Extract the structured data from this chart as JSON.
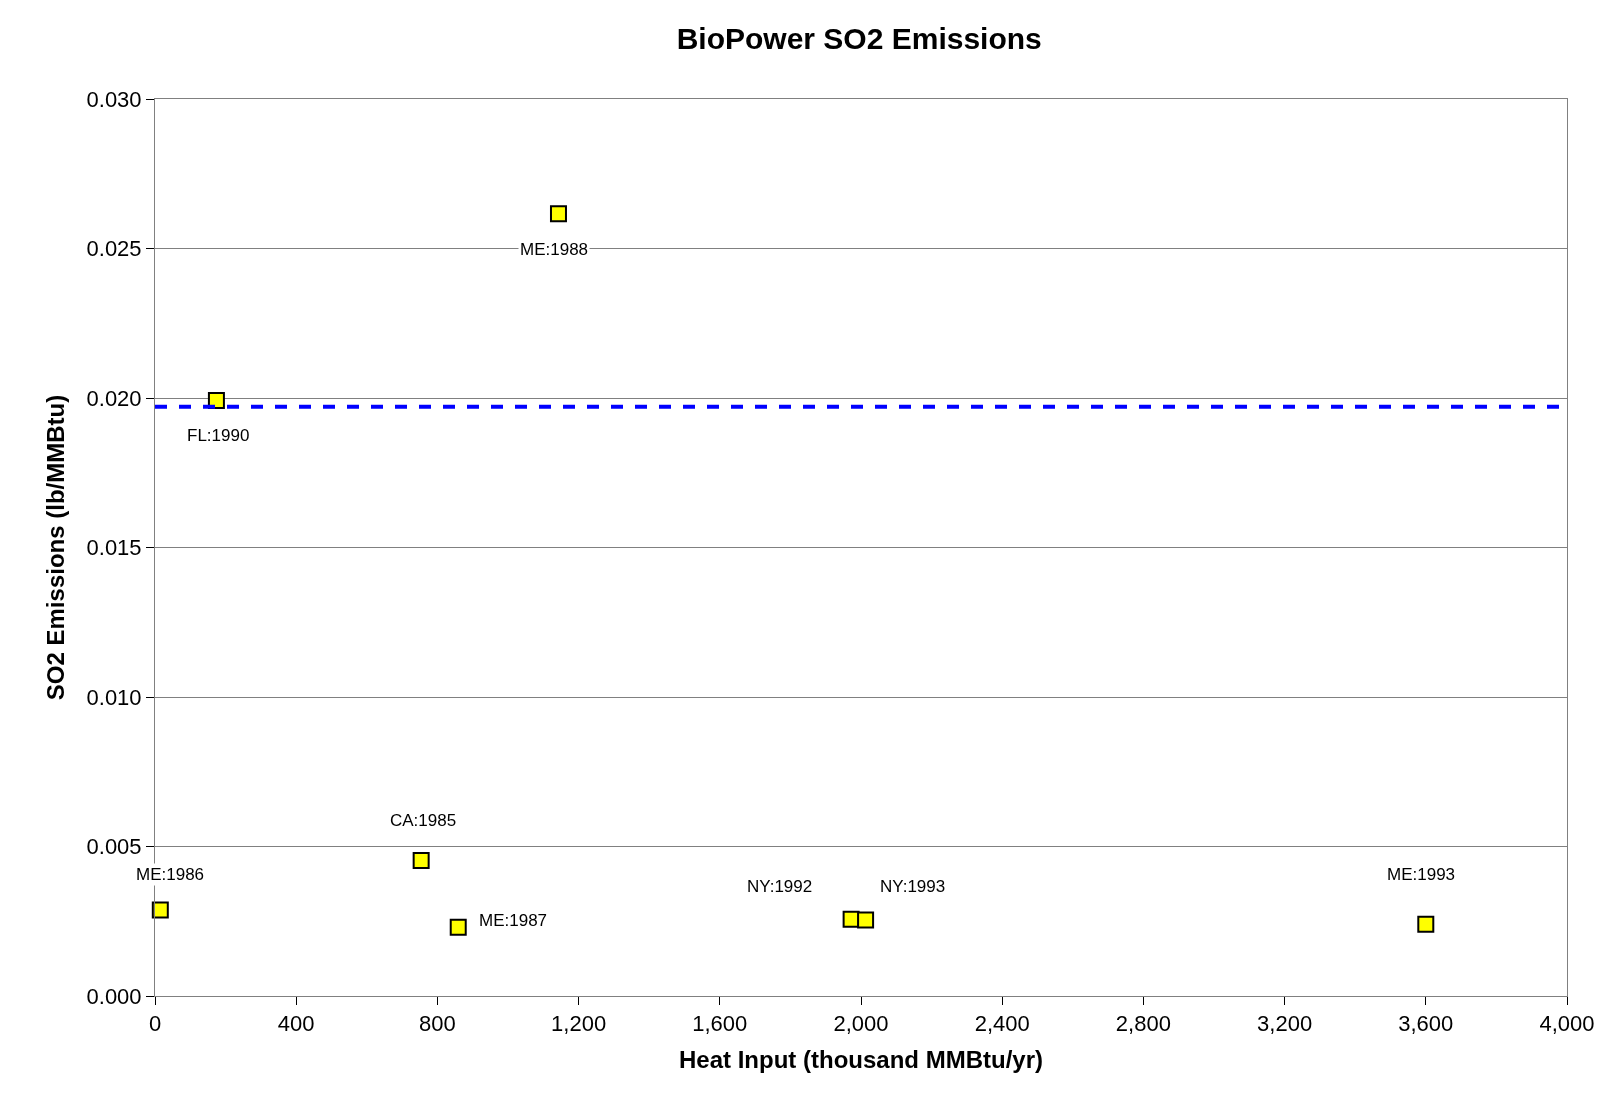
{
  "chart_data": {
    "type": "scatter",
    "title": "BioPower SO2 Emissions",
    "xlabel": "Heat Input (thousand MMBtu/yr)",
    "ylabel": "SO2 Emissions (lb/MMBtu)",
    "x": [
      15,
      174,
      754,
      859,
      1143,
      1972,
      2013,
      3600
    ],
    "series": [
      {
        "color": "#ffff00",
        "values": [
          0.00288,
          0.01992,
          0.00453,
          0.0023,
          0.02616,
          0.00257,
          0.00254,
          0.0024
        ]
      }
    ],
    "marker": "square",
    "grid": "y",
    "xlim": [
      0,
      4000
    ],
    "ylim": [
      0,
      0.03
    ],
    "xticks": [
      0,
      400,
      800,
      {
        "value": 1200,
        "label": "1,200"
      },
      {
        "value": 1600,
        "label": "1,600"
      },
      {
        "value": 2000,
        "label": "2,000"
      },
      {
        "value": 2400,
        "label": "2,400"
      },
      {
        "value": 2800,
        "label": "2,800"
      },
      {
        "value": 3200,
        "label": "3,200"
      },
      {
        "value": 3600,
        "label": "3,600"
      },
      {
        "value": 4000,
        "label": "4,000"
      }
    ],
    "yticks": [
      {
        "value": 0,
        "label": "0.000"
      },
      0.005,
      {
        "value": 0.01,
        "label": "0.010"
      },
      0.015,
      {
        "value": 0.02,
        "label": "0.020"
      },
      0.025,
      {
        "value": 0.03,
        "label": "0.030"
      }
    ],
    "ref_lines": [
      {
        "axis": "y",
        "value": 0.01971,
        "color": "#0000ff",
        "line_style": "dashed"
      }
    ],
    "annotations": [
      {
        "text": "ME:1986",
        "x": 15,
        "y": 0.00288
      },
      {
        "text": "FL:1990",
        "x": 174,
        "y": 0.01992
      },
      {
        "text": "CA:1985",
        "x": 754,
        "y": 0.00453
      },
      {
        "text": "ME:1987",
        "x": 859,
        "y": 0.0023
      },
      {
        "text": "ME:1988",
        "x": 1143,
        "y": 0.02616
      },
      {
        "text": "NY:1992",
        "x": 1972,
        "y": 0.00257
      },
      {
        "text": "NY:1993",
        "x": 2013,
        "y": 0.00254
      },
      {
        "text": "ME:1993",
        "x": 3600,
        "y": 0.0024
      }
    ]
  }
}
